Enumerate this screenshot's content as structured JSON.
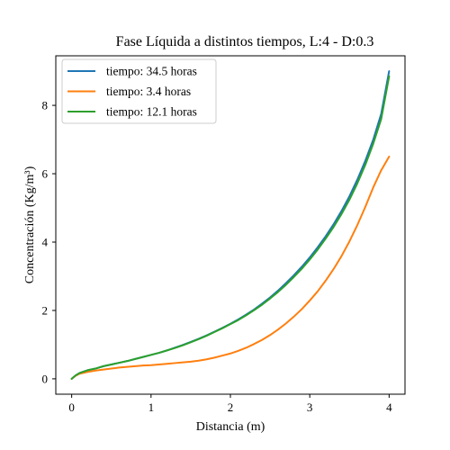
{
  "chart_data": {
    "type": "line",
    "title": "Fase Líquida a distintos tiempos, L:4 - D:0.3",
    "xlabel": "Distancia (m)",
    "ylabel": "Concentración (Kg/m³)",
    "xlim": [
      -0.2,
      4.2
    ],
    "ylim": [
      -0.45,
      9.45
    ],
    "xticks": [
      0,
      1,
      2,
      3,
      4
    ],
    "yticks": [
      0,
      2,
      4,
      6,
      8
    ],
    "grid": false,
    "legend_position": "top-left",
    "series": [
      {
        "name": "tiempo: 34.5 horas",
        "color": "#1f77b4",
        "x": [
          0,
          0.05,
          0.1,
          0.2,
          0.3,
          0.4,
          0.5,
          0.6,
          0.7,
          0.8,
          0.9,
          1.0,
          1.1,
          1.2,
          1.3,
          1.4,
          1.5,
          1.6,
          1.7,
          1.8,
          1.9,
          2.0,
          2.1,
          2.2,
          2.3,
          2.4,
          2.5,
          2.6,
          2.7,
          2.8,
          2.9,
          3.0,
          3.1,
          3.2,
          3.3,
          3.4,
          3.5,
          3.6,
          3.7,
          3.8,
          3.9,
          4.0
        ],
        "y": [
          0.0,
          0.1,
          0.17,
          0.25,
          0.3,
          0.37,
          0.42,
          0.47,
          0.52,
          0.58,
          0.64,
          0.7,
          0.76,
          0.83,
          0.91,
          0.99,
          1.08,
          1.17,
          1.27,
          1.38,
          1.49,
          1.61,
          1.74,
          1.88,
          2.03,
          2.2,
          2.38,
          2.58,
          2.8,
          3.03,
          3.28,
          3.55,
          3.85,
          4.17,
          4.52,
          4.91,
          5.34,
          5.83,
          6.38,
          7.0,
          7.75,
          9.0
        ]
      },
      {
        "name": "tiempo: 3.4 horas",
        "color": "#ff7f0e",
        "x": [
          0,
          0.05,
          0.1,
          0.2,
          0.3,
          0.4,
          0.5,
          0.6,
          0.7,
          0.8,
          0.9,
          1.0,
          1.1,
          1.2,
          1.3,
          1.4,
          1.5,
          1.6,
          1.7,
          1.8,
          1.9,
          2.0,
          2.1,
          2.2,
          2.3,
          2.4,
          2.5,
          2.6,
          2.7,
          2.8,
          2.9,
          3.0,
          3.1,
          3.2,
          3.3,
          3.4,
          3.5,
          3.6,
          3.7,
          3.8,
          3.9,
          4.0
        ],
        "y": [
          0.0,
          0.09,
          0.15,
          0.2,
          0.24,
          0.27,
          0.3,
          0.33,
          0.35,
          0.37,
          0.39,
          0.4,
          0.42,
          0.44,
          0.46,
          0.48,
          0.5,
          0.53,
          0.57,
          0.62,
          0.68,
          0.74,
          0.82,
          0.91,
          1.02,
          1.14,
          1.28,
          1.44,
          1.62,
          1.82,
          2.04,
          2.29,
          2.56,
          2.87,
          3.21,
          3.59,
          4.02,
          4.5,
          5.03,
          5.6,
          6.1,
          6.5
        ]
      },
      {
        "name": "tiempo: 12.1 horas",
        "color": "#2ca02c",
        "x": [
          0,
          0.05,
          0.1,
          0.2,
          0.3,
          0.4,
          0.5,
          0.6,
          0.7,
          0.8,
          0.9,
          1.0,
          1.1,
          1.2,
          1.3,
          1.4,
          1.5,
          1.6,
          1.7,
          1.8,
          1.9,
          2.0,
          2.1,
          2.2,
          2.3,
          2.4,
          2.5,
          2.6,
          2.7,
          2.8,
          2.9,
          3.0,
          3.1,
          3.2,
          3.3,
          3.4,
          3.5,
          3.6,
          3.7,
          3.8,
          3.9,
          4.0
        ],
        "y": [
          0.0,
          0.1,
          0.17,
          0.25,
          0.3,
          0.37,
          0.42,
          0.47,
          0.52,
          0.58,
          0.64,
          0.7,
          0.76,
          0.83,
          0.9,
          0.98,
          1.07,
          1.16,
          1.26,
          1.37,
          1.48,
          1.6,
          1.72,
          1.86,
          2.01,
          2.17,
          2.35,
          2.54,
          2.75,
          2.98,
          3.22,
          3.49,
          3.78,
          4.1,
          4.44,
          4.82,
          5.24,
          5.72,
          6.26,
          6.88,
          7.6,
          8.85
        ]
      }
    ]
  }
}
